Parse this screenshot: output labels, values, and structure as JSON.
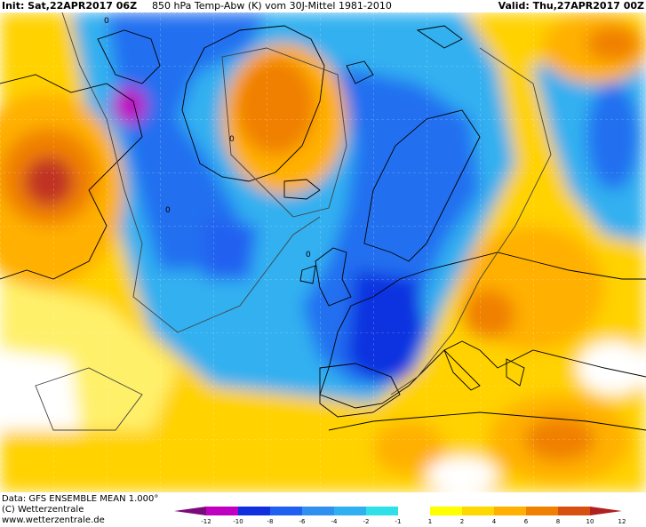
{
  "header": {
    "init": "Init: Sat,22APR2017 06Z",
    "title": "850 hPa Temp-Abw (K) vom 30J-Mittel 1981-2010",
    "valid": "Valid: Thu,27APR2017 00Z"
  },
  "footer": {
    "data_line": "Data: GFS ENSEMBLE MEAN 1.000°",
    "copyright": "(C) Wetterzentrale",
    "url": "www.wetterzentrale.de"
  },
  "colorbar": {
    "labels": [
      "-12",
      "-10",
      "-8",
      "-6",
      "-4",
      "-2",
      "-1",
      "1",
      "2",
      "4",
      "6",
      "8",
      "10",
      "12"
    ],
    "colors": [
      "#7a0a7a",
      "#c000c0",
      "#1030e0",
      "#2060f0",
      "#3090f0",
      "#30b0f0",
      "#30e0e8",
      "#ffffff",
      "#ffff00",
      "#ffd800",
      "#ffb000",
      "#f08000",
      "#d85010",
      "#b02020"
    ]
  },
  "map_labels": {
    "zero": "0"
  }
}
